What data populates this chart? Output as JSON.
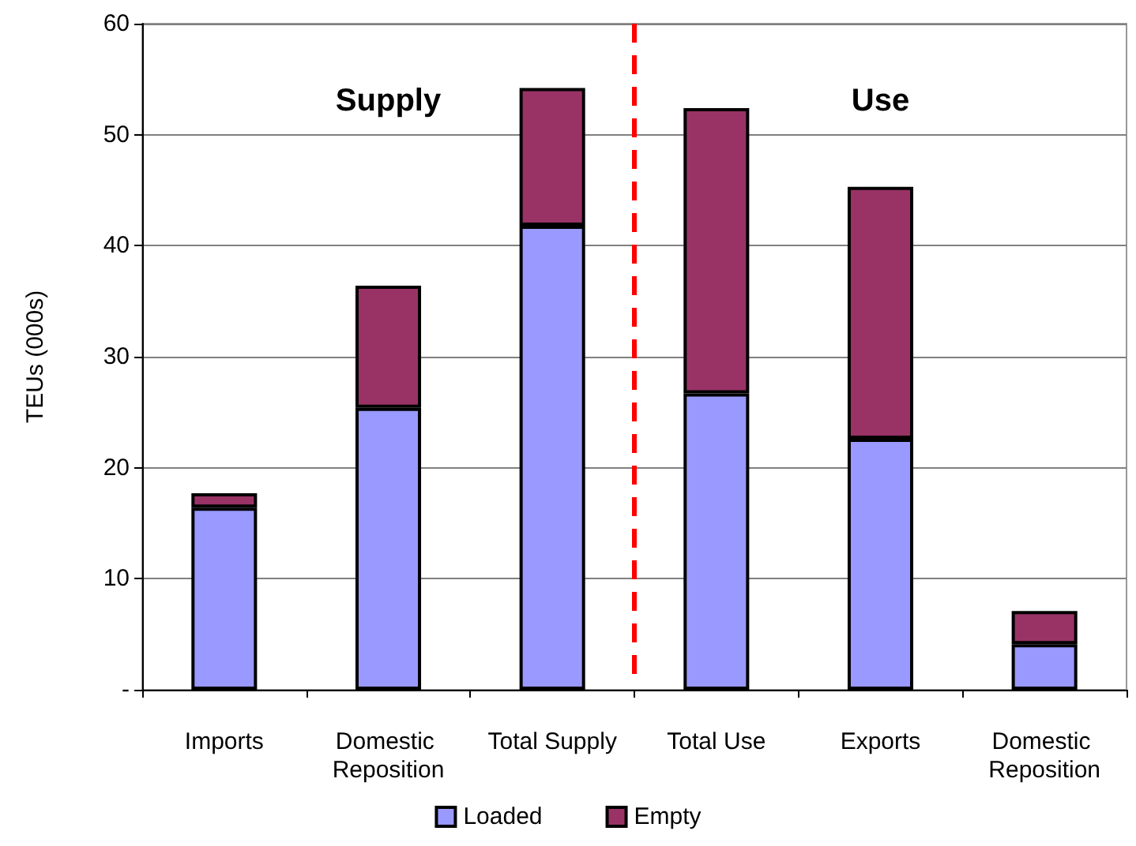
{
  "chart_data": {
    "type": "bar",
    "stacked": true,
    "ylabel": "TEUs (000s)",
    "categories": [
      "Imports",
      "Domestic Reposition",
      "Total Supply",
      "Total Use",
      "Exports",
      "Domestic Reposition"
    ],
    "series": [
      {
        "name": "Loaded",
        "color": "#9999ff",
        "values": [
          16.4,
          25.4,
          41.8,
          26.7,
          22.6,
          4.1
        ]
      },
      {
        "name": "Empty",
        "color": "#993366",
        "values": [
          1.3,
          11.0,
          12.4,
          25.7,
          22.7,
          3.0
        ]
      }
    ],
    "ylim": [
      0,
      60
    ],
    "yticks": [
      {
        "value": 0,
        "label": "-"
      },
      10,
      20,
      30,
      40,
      50,
      60
    ],
    "grid": "y",
    "legend": "bottom",
    "annotations": [
      "Supply",
      "Use"
    ]
  }
}
